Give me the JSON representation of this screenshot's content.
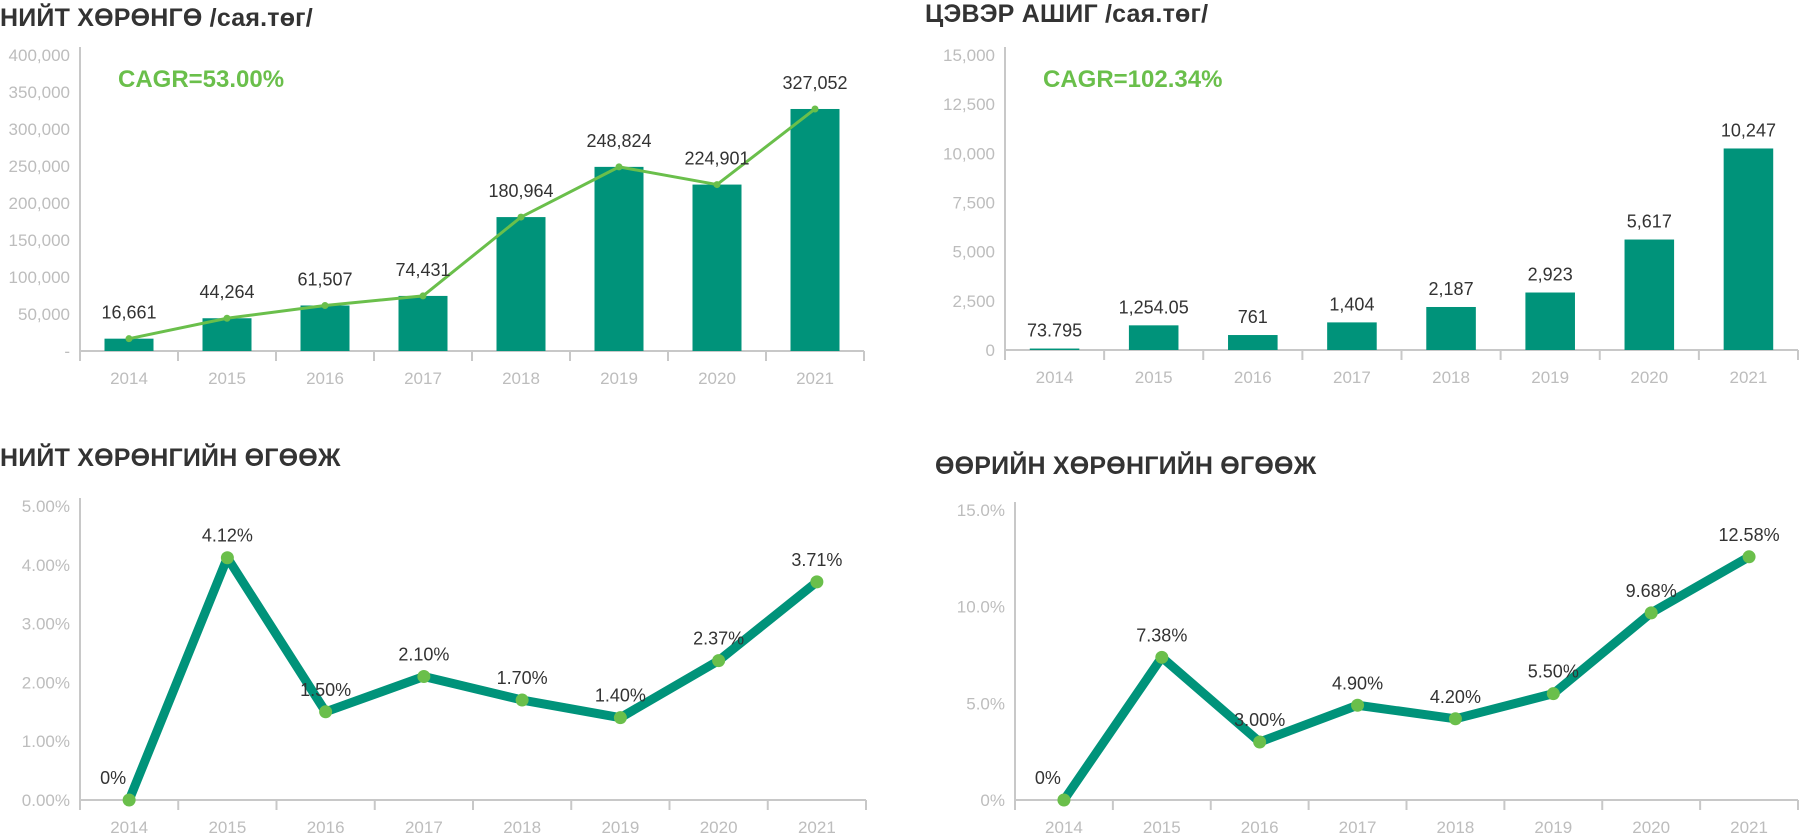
{
  "colors": {
    "bar": "#00937a",
    "line_thick": "#00937a",
    "marker": "#6abf4b",
    "trend": "#6abf4b",
    "axis": "#c8c8c8",
    "tick_text": "#bdbdbd",
    "label_text": "#333333"
  },
  "chart_data": [
    {
      "id": "total-assets",
      "type": "bar",
      "title": "НИЙТ ХӨРӨНГӨ /сая.төг/",
      "annotation": "CAGR=53.00%",
      "categories": [
        "2014",
        "2015",
        "2016",
        "2017",
        "2018",
        "2019",
        "2020",
        "2021"
      ],
      "values": [
        16661,
        44264,
        61507,
        74431,
        180964,
        248824,
        224901,
        327052
      ],
      "data_labels": [
        "16,661",
        "44,264",
        "61,507",
        "74,431",
        "180,964",
        "248,824",
        "224,901",
        "327,052"
      ],
      "overlay_line": true,
      "ylim": [
        0,
        400000
      ],
      "yticks": [
        0,
        50000,
        100000,
        150000,
        200000,
        250000,
        300000,
        350000,
        400000
      ],
      "ytick_labels": [
        "-",
        "50,000",
        "100,000",
        "150,000",
        "200,000",
        "250,000",
        "300,000",
        "350,000",
        "400,000"
      ],
      "xlabel": "",
      "ylabel": "",
      "grid": false,
      "legend": "none"
    },
    {
      "id": "net-profit",
      "type": "bar",
      "title": "ЦЭВЭР АШИГ /сая.төг/",
      "annotation": "CAGR=102.34%",
      "categories": [
        "2014",
        "2015",
        "2016",
        "2017",
        "2018",
        "2019",
        "2020",
        "2021"
      ],
      "values": [
        73.795,
        1254.05,
        761,
        1404,
        2187,
        2923,
        5617,
        10247
      ],
      "data_labels": [
        "73.795",
        "1,254.05",
        "761",
        "1,404",
        "2,187",
        "2,923",
        "5,617",
        "10,247"
      ],
      "overlay_line": false,
      "ylim": [
        0,
        15000
      ],
      "yticks": [
        0,
        2500,
        5000,
        7500,
        10000,
        12500,
        15000
      ],
      "ytick_labels": [
        "0",
        "2,500",
        "5,000",
        "7,500",
        "10,000",
        "12,500",
        "15,000"
      ],
      "xlabel": "",
      "ylabel": "",
      "grid": false,
      "legend": "none"
    },
    {
      "id": "roa",
      "type": "line",
      "title": "НИЙТ ХӨРӨНГИЙН ӨГӨӨЖ",
      "categories": [
        "2014",
        "2015",
        "2016",
        "2017",
        "2018",
        "2019",
        "2020",
        "2021"
      ],
      "values": [
        0,
        4.12,
        1.5,
        2.1,
        1.7,
        1.4,
        2.37,
        3.71
      ],
      "data_labels": [
        "0%",
        "4.12%",
        "1.50%",
        "2.10%",
        "1.70%",
        "1.40%",
        "2.37%",
        "3.71%"
      ],
      "ylim": [
        0,
        5
      ],
      "yticks": [
        0,
        1,
        2,
        3,
        4,
        5
      ],
      "ytick_labels": [
        "0.00%",
        "1.00%",
        "2.00%",
        "3.00%",
        "4.00%",
        "5.00%"
      ],
      "xlabel": "",
      "ylabel": "",
      "grid": false,
      "legend": "none"
    },
    {
      "id": "roe",
      "type": "line",
      "title": "ӨӨРИЙН ХӨРӨНГИЙН ӨГӨӨЖ",
      "categories": [
        "2014",
        "2015",
        "2016",
        "2017",
        "2018",
        "2019",
        "2020",
        "2021"
      ],
      "values": [
        0,
        7.38,
        3.0,
        4.9,
        4.2,
        5.5,
        9.68,
        12.58
      ],
      "data_labels": [
        "0%",
        "7.38%",
        "3.00%",
        "4.90%",
        "4.20%",
        "5.50%",
        "9.68%",
        "12.58%"
      ],
      "ylim": [
        0,
        15
      ],
      "yticks": [
        0,
        5,
        10,
        15
      ],
      "ytick_labels": [
        "0%",
        "5.0%",
        "10.0%",
        "15.0%"
      ],
      "xlabel": "",
      "ylabel": "",
      "grid": false,
      "legend": "none"
    }
  ]
}
